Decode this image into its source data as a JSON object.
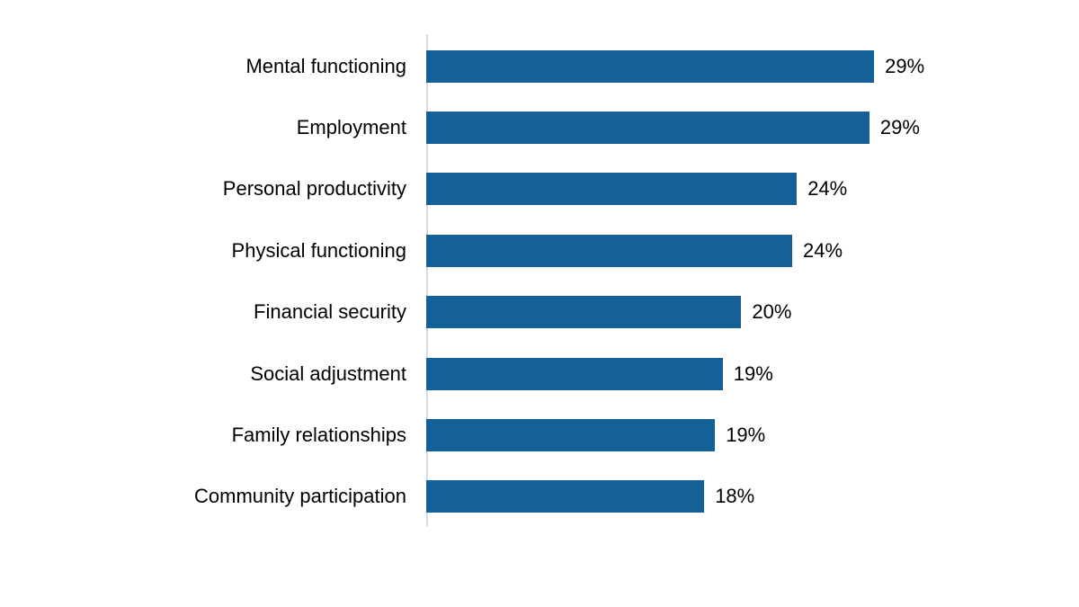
{
  "page": {
    "background_color": "#FFFFFF"
  },
  "chart_data": {
    "type": "bar",
    "orientation": "horizontal",
    "title": "",
    "xlabel": "",
    "ylabel": "",
    "categories": [
      "Mental functioning",
      "Employment",
      "Personal productivity",
      "Physical functioning",
      "Financial security",
      "Social adjustment",
      "Family relationships",
      "Community participation"
    ],
    "values": [
      29,
      29,
      24,
      24,
      20,
      19,
      19,
      18
    ],
    "value_labels": [
      "29%",
      "29%",
      "24%",
      "24%",
      "20%",
      "19%",
      "19%",
      "18%"
    ],
    "values_precise": [
      29.0,
      28.7,
      24.0,
      23.7,
      20.4,
      19.2,
      18.7,
      18.0
    ],
    "xlim": [
      0,
      40
    ],
    "grid": false,
    "legend": "none",
    "data_labels": "outside-end",
    "bar_color": "#16609A",
    "axis_line_color": "#D9D9D9",
    "text_color": "#000000"
  }
}
